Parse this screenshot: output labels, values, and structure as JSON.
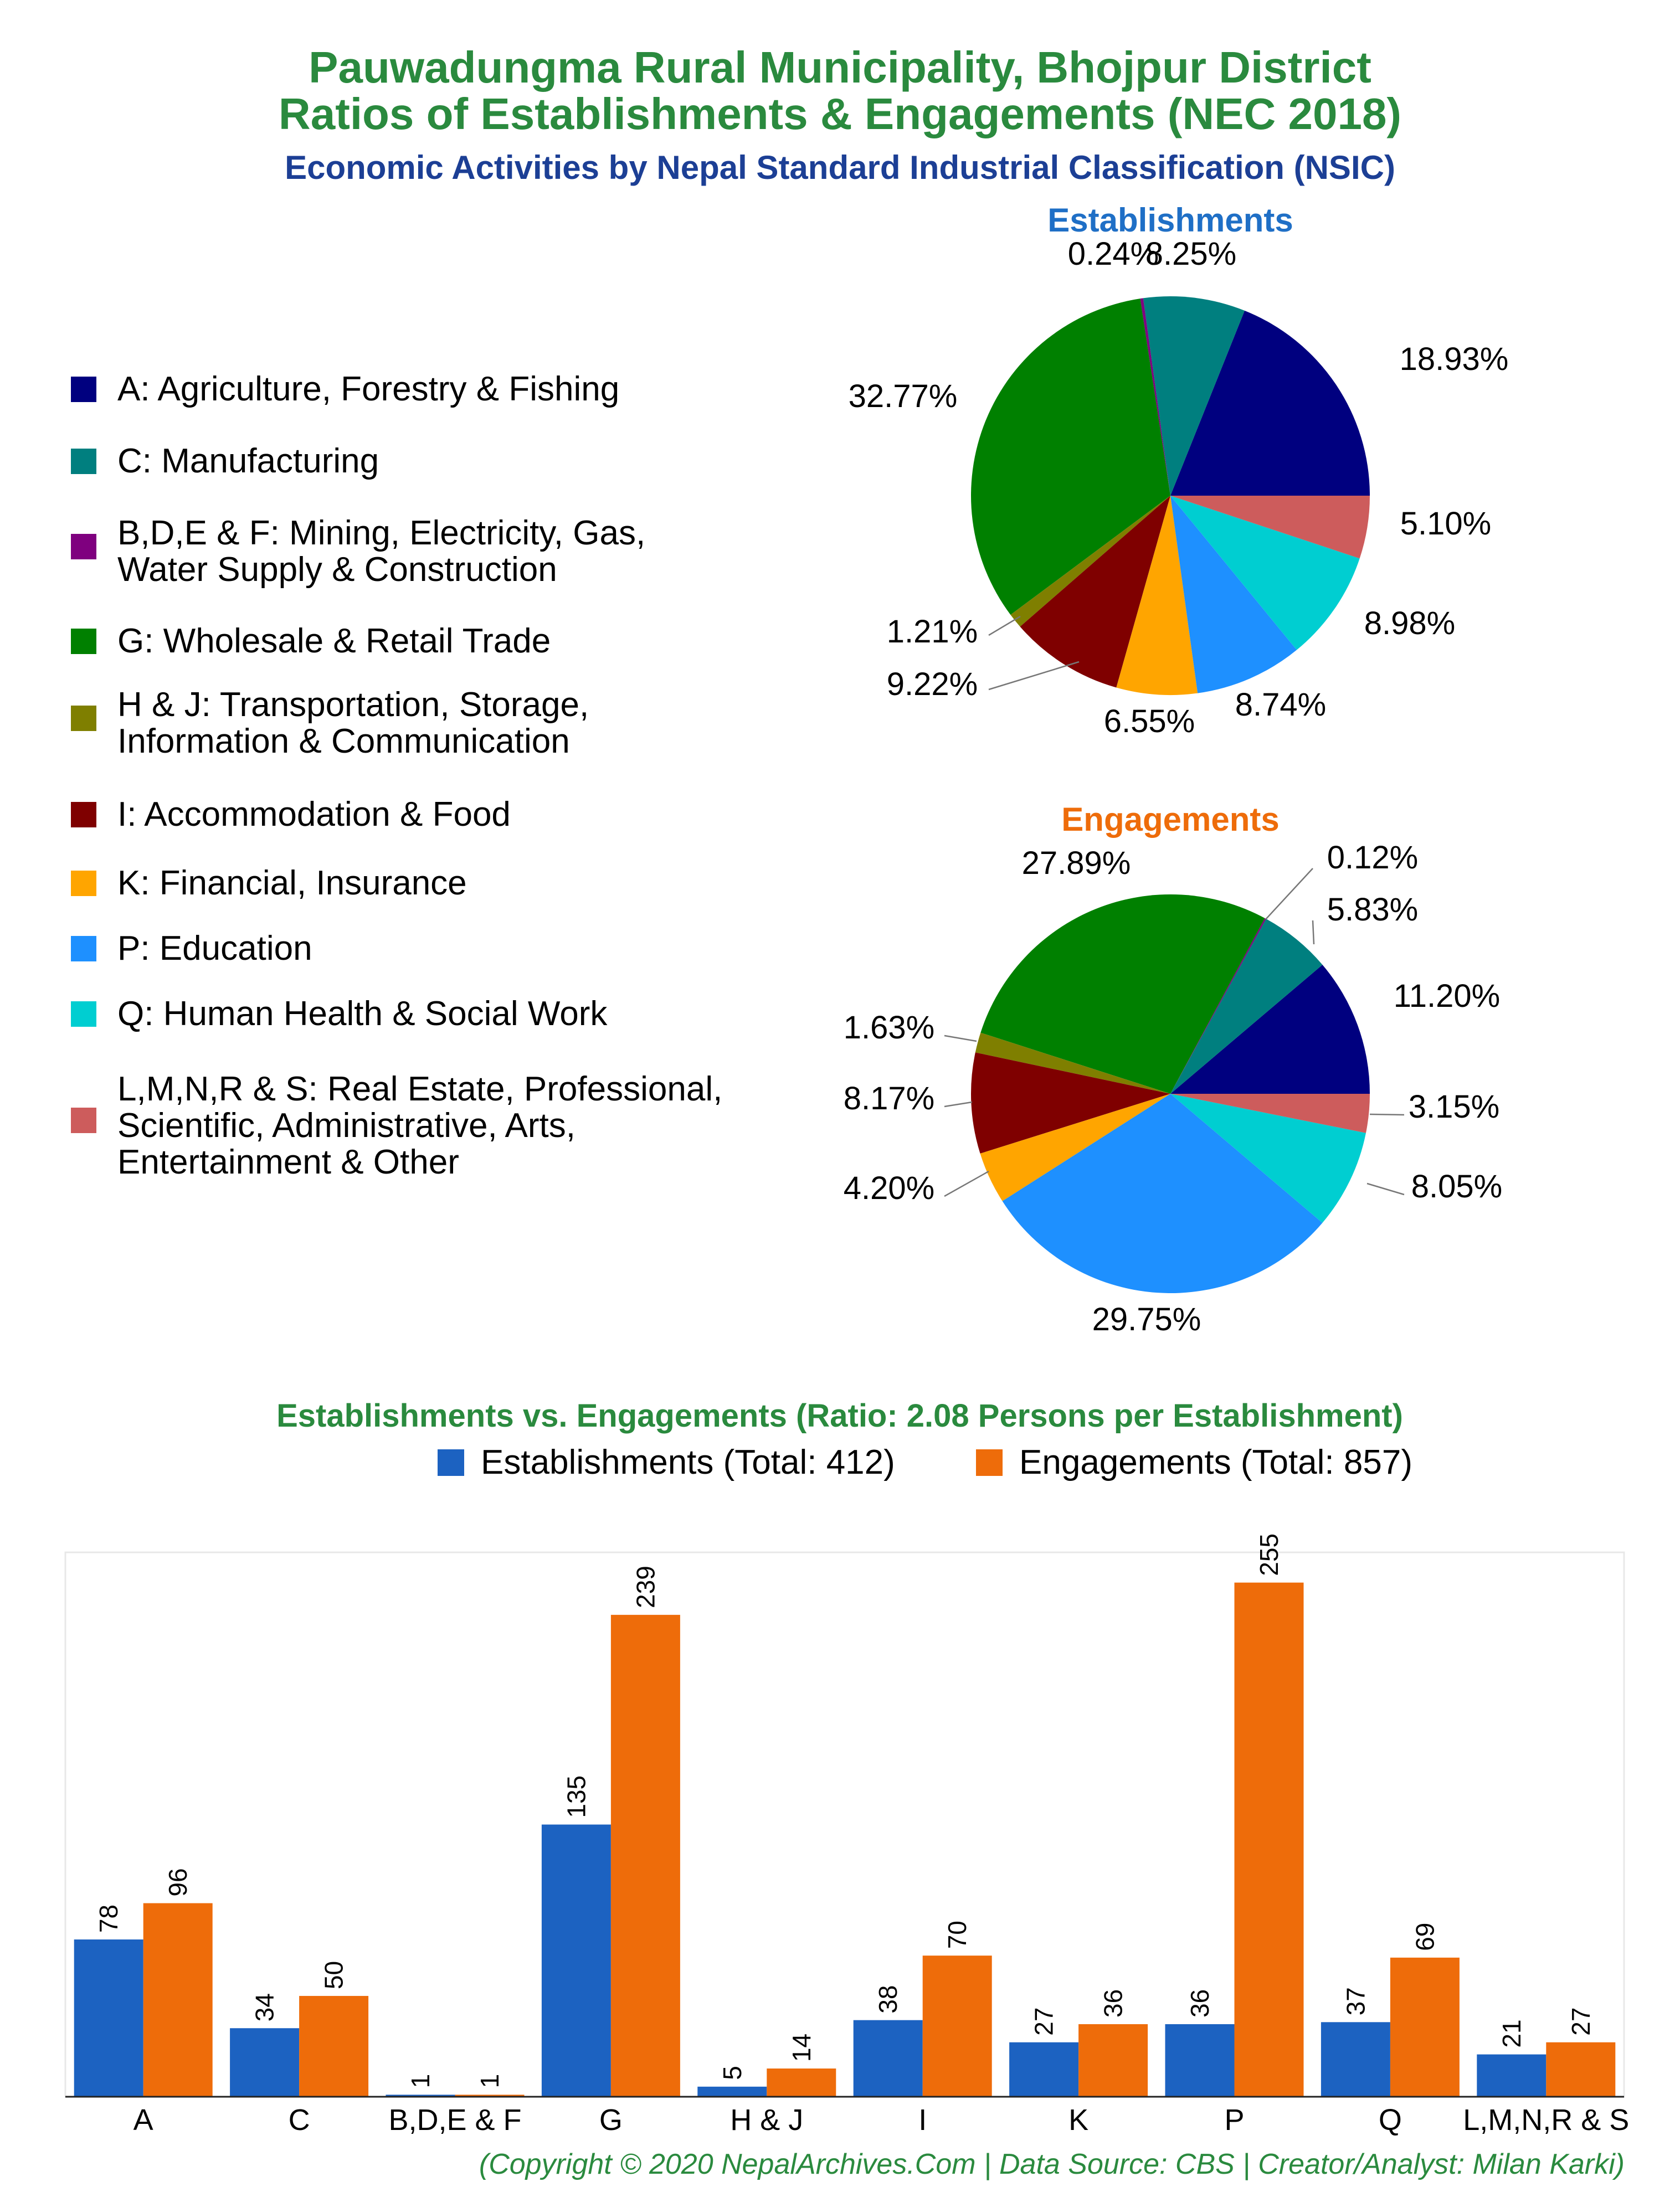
{
  "title_line1": "Pauwadungma Rural Municipality, Bhojpur District",
  "title_line2": "Ratios of Establishments & Engagements (NEC 2018)",
  "subtitle": "Economic Activities by Nepal Standard Industrial Classification (NSIC)",
  "colors": {
    "title": "#2a8a3e",
    "subtitle": "#1c3f95",
    "establishments_title": "#1f6fc6",
    "engagements_title": "#ee6c0a",
    "bar_establishments": "#1c62c1",
    "bar_engagements": "#ee6c0a"
  },
  "legend": [
    {
      "label": "A: Agriculture, Forestry & Fishing",
      "color": "#00007f"
    },
    {
      "label": "C: Manufacturing",
      "color": "#007f7f"
    },
    {
      "label": "B,D,E & F: Mining, Electricity, Gas,\nWater Supply & Construction",
      "color": "#7f007f"
    },
    {
      "label": "G: Wholesale & Retail Trade",
      "color": "#008000"
    },
    {
      "label": "H & J: Transportation, Storage,\nInformation & Communication",
      "color": "#7f7f00"
    },
    {
      "label": "I: Accommodation & Food",
      "color": "#7f0000"
    },
    {
      "label": "K: Financial, Insurance",
      "color": "#ffa500"
    },
    {
      "label": "P: Education",
      "color": "#1e90ff"
    },
    {
      "label": "Q: Human Health & Social Work",
      "color": "#00ced1"
    },
    {
      "label": "L,M,N,R & S: Real Estate, Professional,\nScientific, Administrative, Arts,\nEntertainment & Other",
      "color": "#cd5c5c"
    }
  ],
  "chart_data": [
    {
      "type": "pie",
      "title": "Establishments",
      "categories": [
        "A",
        "C",
        "B,D,E & F",
        "G",
        "H & J",
        "I",
        "K",
        "P",
        "Q",
        "L,M,N,R & S"
      ],
      "values": [
        18.93,
        8.25,
        0.24,
        32.77,
        1.21,
        9.22,
        6.55,
        8.74,
        8.98,
        5.1
      ],
      "labels": [
        "18.93%",
        "8.25%",
        "0.24%",
        "32.77%",
        "1.21%",
        "9.22%",
        "6.55%",
        "8.74%",
        "8.98%",
        "5.10%"
      ]
    },
    {
      "type": "pie",
      "title": "Engagements",
      "categories": [
        "A",
        "C",
        "B,D,E & F",
        "G",
        "H & J",
        "I",
        "K",
        "P",
        "Q",
        "L,M,N,R & S"
      ],
      "values": [
        11.2,
        5.83,
        0.12,
        27.89,
        1.63,
        8.17,
        4.2,
        29.75,
        8.05,
        3.15
      ],
      "labels": [
        "11.20%",
        "5.83%",
        "0.12%",
        "27.89%",
        "1.63%",
        "8.17%",
        "4.20%",
        "29.75%",
        "8.05%",
        "3.15%"
      ]
    },
    {
      "type": "bar",
      "title": "Establishments vs. Engagements (Ratio: 2.08 Persons per Establishment)",
      "categories": [
        "A",
        "C",
        "B,D,E & F",
        "G",
        "H & J",
        "I",
        "K",
        "P",
        "Q",
        "L,M,N,R & S"
      ],
      "series": [
        {
          "name": "Establishments (Total: 412)",
          "values": [
            78,
            34,
            1,
            135,
            5,
            38,
            27,
            36,
            37,
            21
          ]
        },
        {
          "name": "Engagements (Total: 857)",
          "values": [
            96,
            50,
            1,
            239,
            14,
            70,
            36,
            255,
            69,
            27
          ]
        }
      ],
      "ylim": [
        0,
        270
      ],
      "grid": false
    }
  ],
  "footer": "(Copyright © 2020 NepalArchives.Com | Data Source: CBS | Creator/Analyst: Milan Karki)"
}
